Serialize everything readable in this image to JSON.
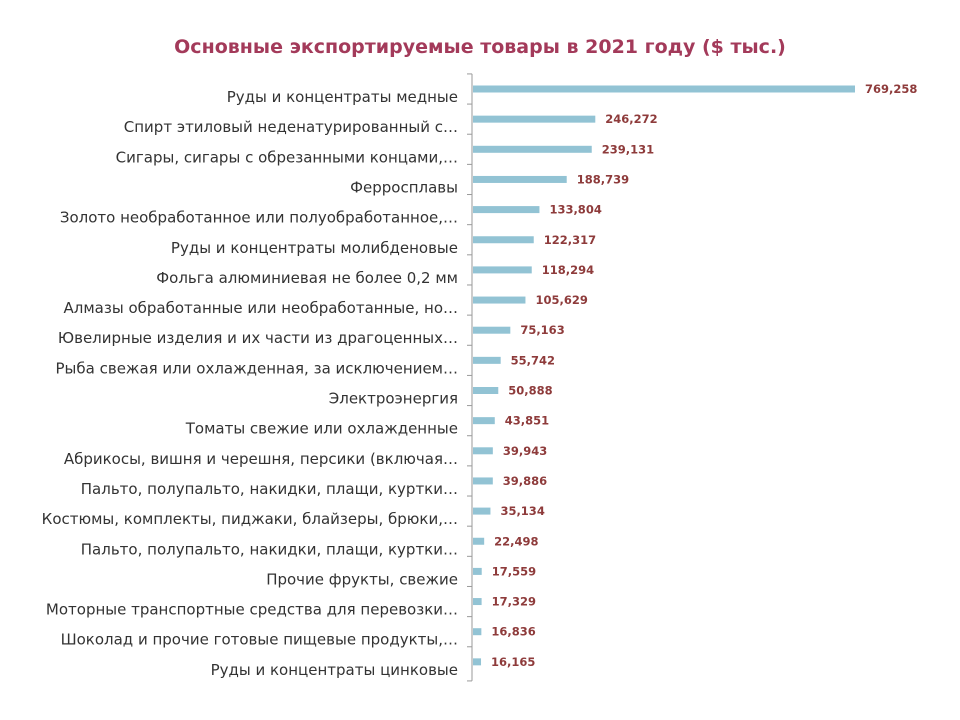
{
  "chart_data": {
    "type": "bar",
    "orientation": "horizontal",
    "title": "Основные экспортируемые товары в 2021 году ($ тыс.)",
    "categories": [
      "Руды и концентраты медные",
      "Спирт этиловый неденатурированный с…",
      "Сигары, сигары с обрезанными концами,…",
      "Ферросплавы",
      "Золото необработанное или полуобработанное,…",
      "Руды и концентраты молибденовые",
      "Фольга алюминиевая не более 0,2 мм",
      "Алмазы обработанные или необработанные, но…",
      "Ювелирные изделия и их части из драгоценных…",
      "Рыба свежая или охлажденная, за исключением…",
      "Электроэнергия",
      "Томаты свежие или охлажденные",
      "Абрикосы, вишня и черешня, персики (включая…",
      "Пальто, полупальто, накидки, плащи, куртки…",
      "Костюмы, комплекты, пиджаки, блайзеры, брюки,…",
      "Пальто, полупальто, накидки, плащи, куртки…",
      "Прочие фрукты, свежие",
      "Моторные транспортные средства для перевозки…",
      "Шоколад и прочие готовые пищевые продукты,…",
      "Руды и концентраты цинковые"
    ],
    "values": [
      769258,
      246272,
      239131,
      188739,
      133804,
      122317,
      118294,
      105629,
      75163,
      55742,
      50888,
      43851,
      39943,
      39886,
      35134,
      22498,
      17559,
      17329,
      16836,
      16165
    ],
    "value_labels": [
      "769,258",
      "246,272",
      "239,131",
      "188,739",
      "133,804",
      "122,317",
      "118,294",
      "105,629",
      "75,163",
      "55,742",
      "50,888",
      "43,851",
      "39,943",
      "39,886",
      "35,134",
      "22,498",
      "17,559",
      "17,329",
      "16,836",
      "16,165"
    ],
    "xlim": [
      0,
      769258
    ],
    "grid": false,
    "legend": "none",
    "colors": {
      "bar": "#92c3d4",
      "value_label": "#8e3b3b",
      "title": "#a33a5a",
      "axis": "#9a9a9a",
      "category_text": "#333333"
    }
  }
}
